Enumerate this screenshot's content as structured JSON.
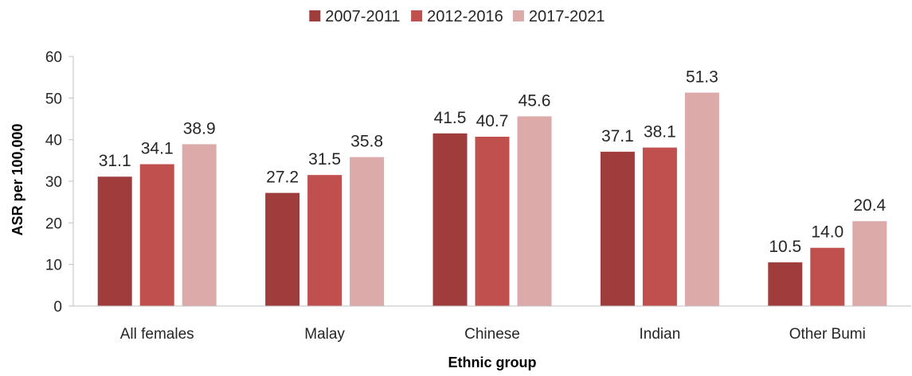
{
  "chart_data": {
    "type": "bar",
    "categories": [
      "All females",
      "Malay",
      "Chinese",
      "Indian",
      "Other Bumi"
    ],
    "series": [
      {
        "name": "2007-2011",
        "color": "#9e3d3c",
        "values": [
          31.1,
          27.2,
          41.5,
          37.1,
          10.5
        ]
      },
      {
        "name": "2012-2016",
        "color": "#c0504e",
        "values": [
          34.1,
          31.5,
          40.7,
          38.1,
          14.0
        ]
      },
      {
        "name": "2017-2021",
        "color": "#dbaaa9",
        "values": [
          38.9,
          35.8,
          45.6,
          51.3,
          20.4
        ]
      }
    ],
    "xlabel": "Ethnic group",
    "ylabel": "ASR per 100,000",
    "ylim": [
      0,
      60
    ],
    "yticks": [
      0,
      10,
      20,
      30,
      40,
      50,
      60
    ],
    "grid": false,
    "legend_position": "top-center",
    "data_labels": true
  }
}
